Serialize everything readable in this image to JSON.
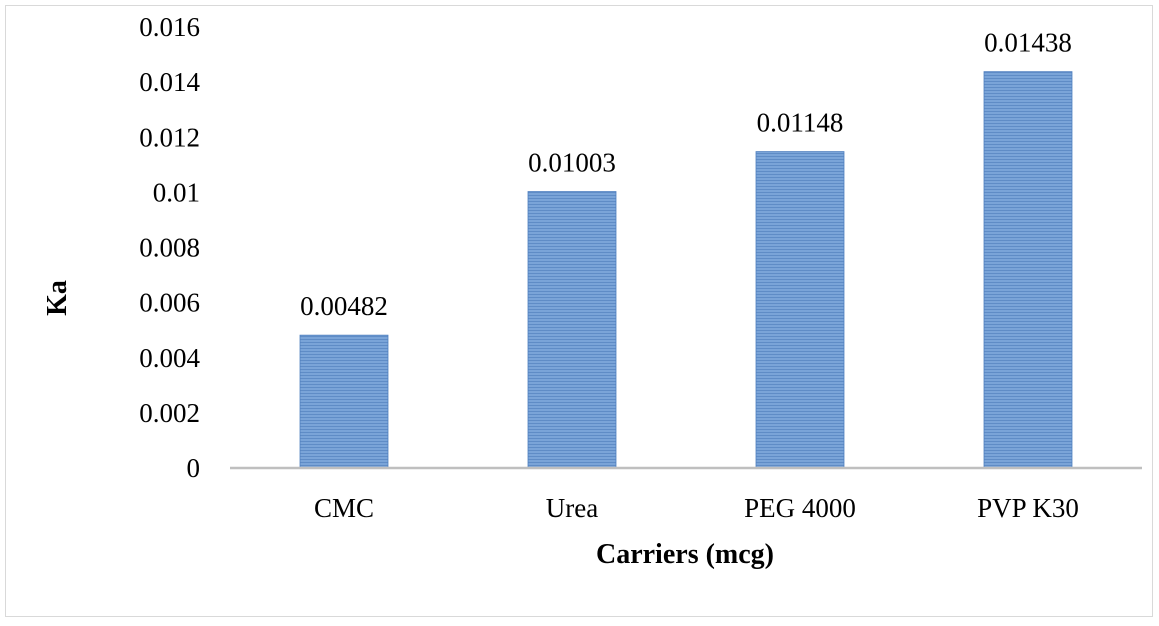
{
  "chart_data": {
    "type": "bar",
    "title": "",
    "xlabel": "Carriers (mcg)",
    "ylabel": "Ka",
    "categories": [
      "CMC",
      "Urea",
      "PEG 4000",
      "PVP K30"
    ],
    "values": [
      0.00482,
      0.01003,
      0.01148,
      0.01438
    ],
    "data_labels": [
      "0.00482",
      "0.01003",
      "0.01148",
      "0.01438"
    ],
    "ylim": [
      0,
      0.016
    ],
    "yticks": [
      "0",
      "0.002",
      "0.004",
      "0.006",
      "0.008",
      "0.01",
      "0.012",
      "0.014",
      "0.016"
    ],
    "grid": false,
    "legend": "none",
    "colors": {
      "bar": "#6f9bd3",
      "bar_dark": "#4f7fbf",
      "axis": "#bfbfbf"
    }
  }
}
